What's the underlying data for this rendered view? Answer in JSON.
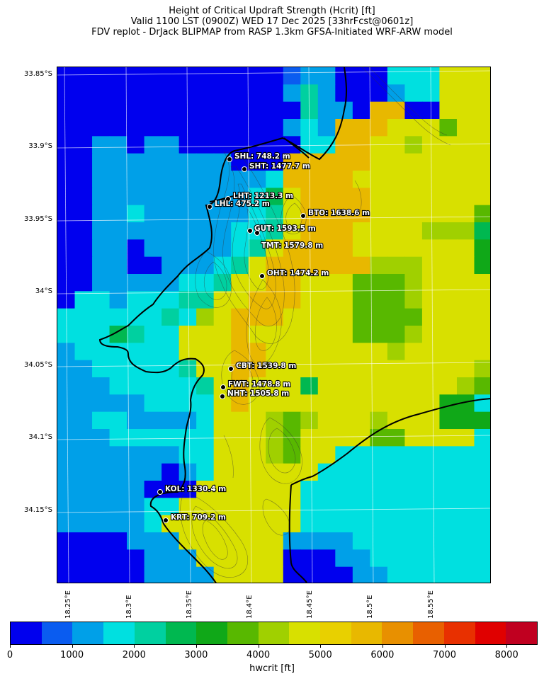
{
  "title": {
    "line1": "Height of Critical Updraft Strength (Hcrit) [ft]",
    "line2": "Valid 1100 LST (0900Z) WED 17 Dec 2025 [33hrFcst@0601z]",
    "line3": "FDV replot - DrJack BLIPMAP from RASP 1.3km GFSA-Initiated WRF-ARW model"
  },
  "lat_labels": [
    "33.85°S",
    "33.9°S",
    "33.95°S",
    "34°S",
    "34.05°S",
    "34.1°S",
    "34.15°S"
  ],
  "lon_labels": [
    "18.25°E",
    "18.3°E",
    "18.35°E",
    "18.4°E",
    "18.45°E",
    "18.5°E",
    "18.55°E"
  ],
  "colorbar": {
    "label": "hwcrit [ft]",
    "tick_labels": [
      "0",
      "1000",
      "2000",
      "3000",
      "4000",
      "5000",
      "6000",
      "7000",
      "8000"
    ],
    "colors": [
      "#0000ee",
      "#0a5cf0",
      "#00a0e8",
      "#00e0e0",
      "#00d0a0",
      "#00b850",
      "#10a818",
      "#58b800",
      "#a0d000",
      "#d8e000",
      "#e8d000",
      "#e8b800",
      "#e89000",
      "#e86000",
      "#e83000",
      "#e00000",
      "#c00020"
    ]
  },
  "stations": [
    {
      "code": "SHL",
      "label": "SHL: 748.2 m"
    },
    {
      "code": "SHT",
      "label": "SHT: 1477.7 m"
    },
    {
      "code": "LHT",
      "label": "LHT: 1213.3 m"
    },
    {
      "code": "LHL",
      "label": "LHL: 475.2 m"
    },
    {
      "code": "BTO",
      "label": "BTO: 1638.6 m"
    },
    {
      "code": "GUT",
      "label": "GUT: 1593.5 m"
    },
    {
      "code": "TMT",
      "label": "TMT: 1579.8 m"
    },
    {
      "code": "OHT",
      "label": "OHT: 1474.2 m"
    },
    {
      "code": "CBT",
      "label": "CBT: 1539.8 m"
    },
    {
      "code": "FWT",
      "label": "FWT: 1478.8 m"
    },
    {
      "code": "NHT",
      "label": "NHT: 1505.8 m"
    },
    {
      "code": "KOL",
      "label": "KOL: 1330.4 m"
    },
    {
      "code": "KRT",
      "label": "KRT: 709.2 m"
    }
  ]
}
